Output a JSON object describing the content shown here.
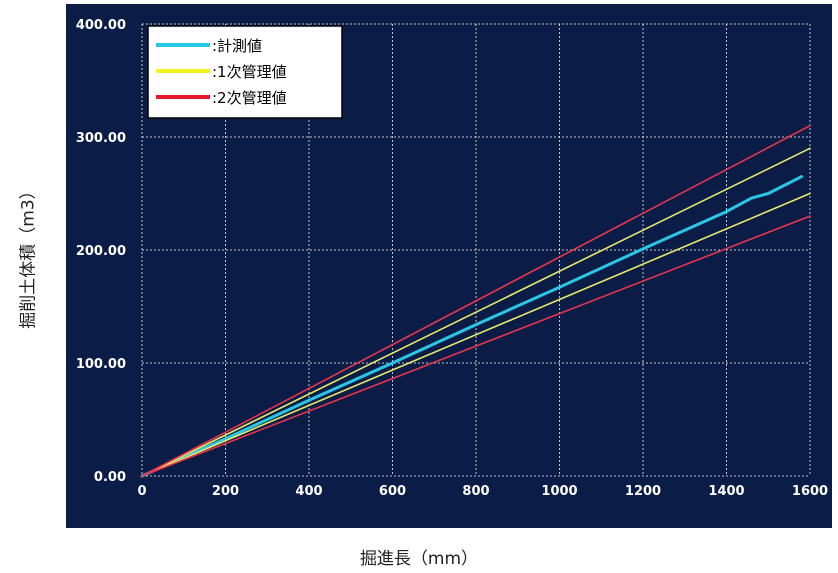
{
  "chart_data": {
    "type": "line",
    "xlabel": "掘進長（mm）",
    "ylabel": "掘削土体積（m3）",
    "xlim": [
      0,
      1600
    ],
    "ylim": [
      0,
      400
    ],
    "x_ticks": [
      "0",
      "200",
      "400",
      "600",
      "800",
      "1000",
      "1200",
      "1400",
      "1600"
    ],
    "y_ticks": [
      "0.00",
      "100.00",
      "200.00",
      "300.00",
      "400.00"
    ],
    "grid": true,
    "legend_position": "top-left",
    "background_color": "#0b1d47",
    "series": [
      {
        "name": ":計測値",
        "color": "#29c6e6",
        "width": 3,
        "x": [
          0,
          200,
          400,
          600,
          800,
          1000,
          1200,
          1400,
          1460,
          1500,
          1580
        ],
        "y": [
          0,
          33,
          67,
          100,
          134,
          167,
          201,
          234,
          246,
          250,
          265
        ]
      },
      {
        "name": ":1次管理値",
        "color": "#e6e86a",
        "width": 1.6,
        "x": [
          0,
          1600
        ],
        "y": [
          0,
          290
        ]
      },
      {
        "name": "",
        "color": "#e6e86a",
        "width": 1.6,
        "x": [
          0,
          1600
        ],
        "y": [
          0,
          250
        ]
      },
      {
        "name": ":2次管理値",
        "color": "#e8354c",
        "width": 1.6,
        "x": [
          0,
          1600
        ],
        "y": [
          0,
          310
        ]
      },
      {
        "name": "",
        "color": "#e8354c",
        "width": 1.6,
        "x": [
          0,
          1600
        ],
        "y": [
          0,
          230
        ]
      }
    ],
    "legend": [
      {
        "label": ":計測値",
        "color": "#29c6e6"
      },
      {
        "label": ":1次管理値",
        "color": "#f2f21c"
      },
      {
        "label": ":2次管理値",
        "color": "#e8152c"
      }
    ]
  }
}
